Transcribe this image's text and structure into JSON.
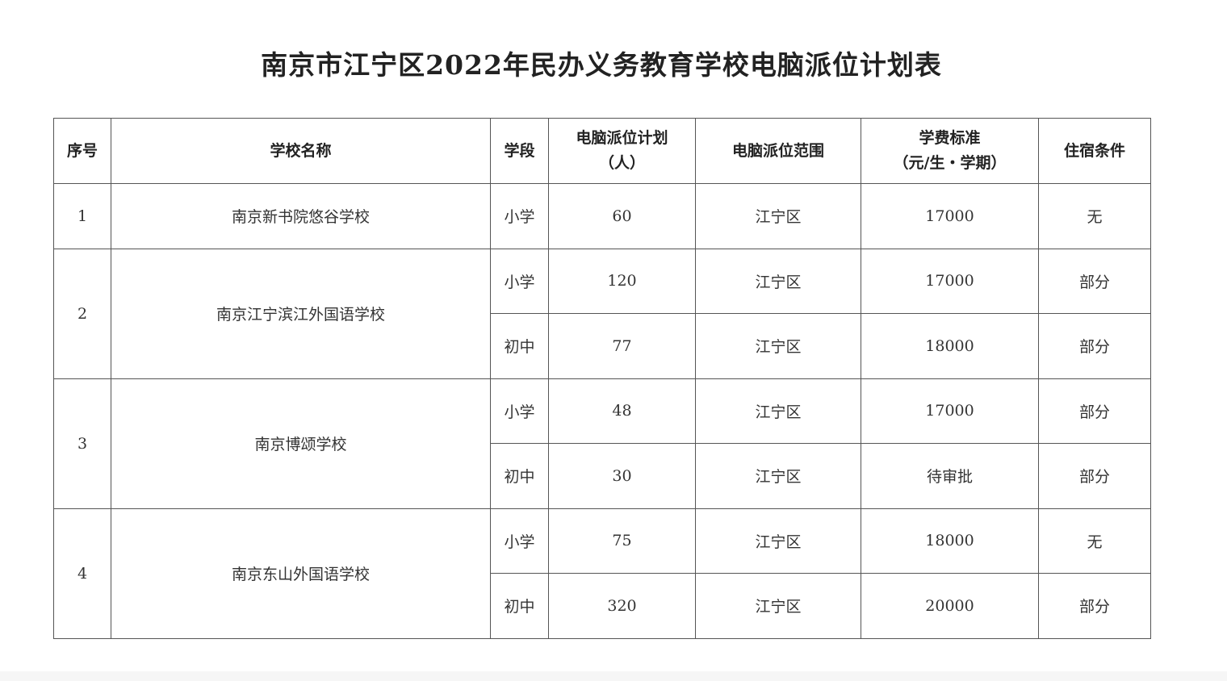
{
  "title": "南京市江宁区2022年民办义务教育学校电脑派位计划表",
  "headers": {
    "index": "序号",
    "school": "学校名称",
    "stage": "学段",
    "plan_line1": "电脑派位计划",
    "plan_line2": "（人）",
    "range": "电脑派位范围",
    "fee_line1": "学费标准",
    "fee_line2": "（元/生・学期）",
    "housing": "住宿条件"
  },
  "schools": [
    {
      "index": "1",
      "name": "南京新书院悠谷学校",
      "rows": [
        {
          "stage": "小学",
          "plan": "60",
          "range": "江宁区",
          "fee": "17000",
          "housing": "无"
        }
      ]
    },
    {
      "index": "2",
      "name": "南京江宁滨江外国语学校",
      "rows": [
        {
          "stage": "小学",
          "plan": "120",
          "range": "江宁区",
          "fee": "17000",
          "housing": "部分"
        },
        {
          "stage": "初中",
          "plan": "77",
          "range": "江宁区",
          "fee": "18000",
          "housing": "部分"
        }
      ]
    },
    {
      "index": "3",
      "name": "南京博颂学校",
      "rows": [
        {
          "stage": "小学",
          "plan": "48",
          "range": "江宁区",
          "fee": "17000",
          "housing": "部分"
        },
        {
          "stage": "初中",
          "plan": "30",
          "range": "江宁区",
          "fee": "待审批",
          "housing": "部分"
        }
      ]
    },
    {
      "index": "4",
      "name": "南京东山外国语学校",
      "rows": [
        {
          "stage": "小学",
          "plan": "75",
          "range": "江宁区",
          "fee": "18000",
          "housing": "无"
        },
        {
          "stage": "初中",
          "plan": "320",
          "range": "江宁区",
          "fee": "20000",
          "housing": "部分"
        }
      ]
    }
  ]
}
